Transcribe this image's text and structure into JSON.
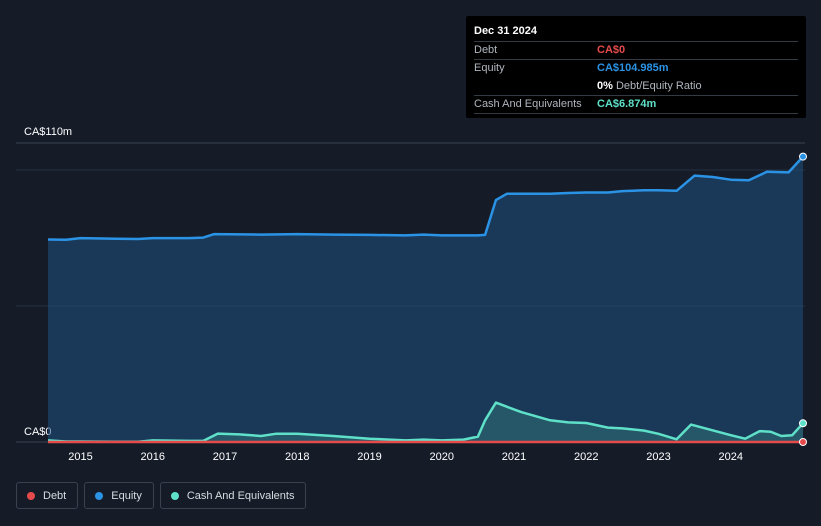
{
  "tooltip": {
    "date": "Dec 31 2024",
    "debt_label": "Debt",
    "debt_value": "CA$0",
    "equity_label": "Equity",
    "equity_value": "CA$104.985m",
    "ratio_value": "0%",
    "ratio_label": "Debt/Equity Ratio",
    "cash_label": "Cash And Equivalents",
    "cash_value": "CA$6.874m"
  },
  "colors": {
    "debt": "#e64b4b",
    "equity": "#2b93e6",
    "cash": "#5fe0c8"
  },
  "legend": [
    {
      "label": "Debt",
      "color": "#e64b4b"
    },
    {
      "label": "Equity",
      "color": "#2b93e6"
    },
    {
      "label": "Cash And Equivalents",
      "color": "#5fe0c8"
    }
  ],
  "chart_data": {
    "type": "area",
    "y_top_label": "CA$110m",
    "y_bottom_label": "CA$0",
    "ylim": [
      0,
      110
    ],
    "xlim": [
      2014.55,
      2025.0
    ],
    "x_ticks": [
      "2015",
      "2016",
      "2017",
      "2018",
      "2019",
      "2020",
      "2021",
      "2022",
      "2023",
      "2024"
    ],
    "x_tick_values": [
      2015,
      2016,
      2017,
      2018,
      2019,
      2020,
      2021,
      2022,
      2023,
      2024
    ],
    "series": [
      {
        "name": "Debt",
        "x": [
          2014.55,
          2025.0
        ],
        "values": [
          0,
          0
        ]
      },
      {
        "name": "Equity",
        "x": [
          2014.55,
          2014.8,
          2015.0,
          2015.5,
          2015.8,
          2016.0,
          2016.5,
          2016.7,
          2016.85,
          2017.5,
          2018.0,
          2018.5,
          2019.0,
          2019.5,
          2019.75,
          2020.0,
          2020.5,
          2020.6,
          2020.75,
          2020.9,
          2021.5,
          2021.75,
          2022.0,
          2022.3,
          2022.5,
          2022.8,
          2023.0,
          2023.25,
          2023.5,
          2023.75,
          2024.0,
          2024.25,
          2024.5,
          2024.8,
          2025.0
        ],
        "values": [
          74.5,
          74.4,
          75.0,
          74.8,
          74.7,
          75.0,
          75.0,
          75.2,
          76.5,
          76.3,
          76.5,
          76.3,
          76.2,
          76.0,
          76.3,
          76.0,
          76.0,
          76.2,
          89.0,
          91.3,
          91.3,
          91.6,
          91.8,
          91.8,
          92.3,
          92.6,
          92.6,
          92.4,
          98.0,
          97.5,
          96.5,
          96.3,
          99.4,
          99.2,
          104.985
        ]
      },
      {
        "name": "Cash And Equivalents",
        "x": [
          2014.55,
          2014.8,
          2015.0,
          2015.5,
          2015.8,
          2016.0,
          2016.5,
          2016.7,
          2016.9,
          2017.2,
          2017.5,
          2017.7,
          2018.0,
          2018.5,
          2019.0,
          2019.5,
          2019.75,
          2020.0,
          2020.3,
          2020.5,
          2020.6,
          2020.75,
          2020.9,
          2021.1,
          2021.5,
          2021.75,
          2022.0,
          2022.3,
          2022.5,
          2022.8,
          2023.0,
          2023.25,
          2023.45,
          2024.0,
          2024.2,
          2024.4,
          2024.55,
          2024.7,
          2024.85,
          2025.0
        ],
        "values": [
          0.6,
          0.2,
          0.2,
          0.1,
          0.1,
          0.6,
          0.4,
          0.4,
          3.1,
          2.8,
          2.2,
          3.0,
          3.0,
          2.2,
          1.2,
          0.6,
          0.9,
          0.6,
          0.9,
          2.0,
          8.0,
          14.5,
          13.0,
          11.0,
          8.0,
          7.2,
          7.0,
          5.3,
          5.0,
          4.2,
          3.0,
          1.0,
          6.4,
          2.5,
          1.2,
          4.0,
          3.8,
          2.2,
          2.5,
          6.874
        ]
      }
    ]
  }
}
